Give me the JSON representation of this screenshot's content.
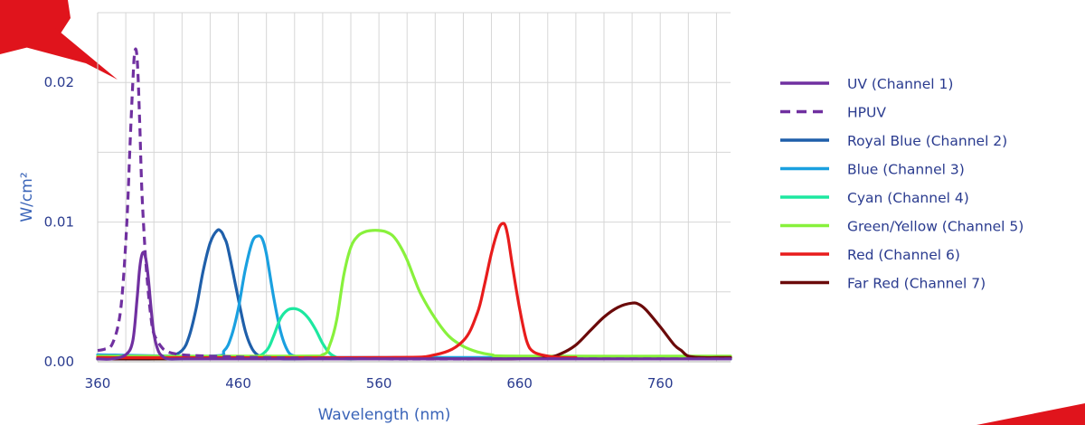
{
  "chart_data": {
    "type": "line",
    "xlabel": "Wavelength (nm)",
    "ylabel": "W/cm²",
    "xlim": [
      360,
      810
    ],
    "ylim": [
      0,
      0.025
    ],
    "xticks": [
      360,
      460,
      560,
      660,
      760
    ],
    "xtick_labels": [
      "360",
      "460",
      "560",
      "660",
      "760"
    ],
    "yticks": [
      0,
      0.01,
      0.02
    ],
    "ytick_labels": [
      "0.00",
      "0.01",
      "0.02"
    ],
    "grid": true,
    "legend_position": "right",
    "series": [
      {
        "name": "UV (Channel 1)",
        "color": "#7030a0",
        "style": "solid",
        "x": [
          360,
          370,
          380,
          385,
          388,
          390,
          392,
          394,
          396,
          398,
          400,
          403,
          406,
          410,
          420,
          440,
          460,
          500,
          560,
          660,
          810
        ],
        "y": [
          0.0002,
          0.0002,
          0.0005,
          0.0015,
          0.0045,
          0.0068,
          0.0078,
          0.0075,
          0.006,
          0.0038,
          0.002,
          0.0008,
          0.0004,
          0.0002,
          0.0002,
          0.0002,
          0.0002,
          0.0002,
          0.0002,
          0.0002,
          0.0002
        ]
      },
      {
        "name": "HPUV",
        "color": "#7030a0",
        "style": "dashed",
        "x": [
          360,
          365,
          370,
          375,
          378,
          381,
          383,
          385,
          386,
          387,
          388,
          389,
          390,
          391,
          392,
          394,
          396,
          398,
          400,
          405,
          410,
          420,
          440,
          480,
          560,
          660,
          810
        ],
        "y": [
          0.0008,
          0.0009,
          0.0012,
          0.0028,
          0.0055,
          0.0105,
          0.0155,
          0.02,
          0.0218,
          0.0224,
          0.0218,
          0.0198,
          0.0168,
          0.0135,
          0.011,
          0.0075,
          0.005,
          0.0031,
          0.002,
          0.0011,
          0.0007,
          0.0005,
          0.0004,
          0.0003,
          0.0002,
          0.0002,
          0.0002
        ]
      },
      {
        "name": "Royal Blue (Channel 2)",
        "color": "#1f5faa",
        "style": "solid",
        "x": [
          360,
          400,
          410,
          420,
          425,
          430,
          435,
          440,
          445,
          448,
          450,
          452,
          455,
          460,
          465,
          470,
          475,
          480,
          490,
          510,
          560,
          660,
          810
        ],
        "y": [
          0.0002,
          0.0002,
          0.0003,
          0.0008,
          0.0018,
          0.0038,
          0.0065,
          0.0085,
          0.0094,
          0.0093,
          0.0089,
          0.0084,
          0.007,
          0.0045,
          0.0022,
          0.0009,
          0.0004,
          0.0003,
          0.0002,
          0.0002,
          0.0002,
          0.0002,
          0.0002
        ]
      },
      {
        "name": "Blue (Channel 3)",
        "color": "#1aa0e0",
        "style": "solid",
        "x": [
          360,
          440,
          450,
          455,
          460,
          465,
          470,
          474,
          477,
          480,
          485,
          490,
          495,
          500,
          510,
          520,
          560,
          660,
          810
        ],
        "y": [
          0.0005,
          0.0004,
          0.0008,
          0.0018,
          0.0038,
          0.0066,
          0.0086,
          0.009,
          0.0088,
          0.0077,
          0.0047,
          0.0022,
          0.0008,
          0.0004,
          0.0003,
          0.0003,
          0.0003,
          0.0003,
          0.0003
        ]
      },
      {
        "name": "Cyan (Channel 4)",
        "color": "#1de8a0",
        "style": "solid",
        "x": [
          360,
          440,
          470,
          480,
          485,
          490,
          495,
          500,
          505,
          510,
          515,
          520,
          525,
          530,
          535,
          545,
          560,
          660,
          810
        ],
        "y": [
          0.0002,
          0.0002,
          0.0003,
          0.0008,
          0.0018,
          0.0031,
          0.0037,
          0.0038,
          0.0036,
          0.0031,
          0.0023,
          0.0013,
          0.0006,
          0.0003,
          0.0002,
          0.0002,
          0.0002,
          0.0002,
          0.0002
        ]
      },
      {
        "name": "Green/Yellow (Channel 5)",
        "color": "#88f13c",
        "style": "solid",
        "x": [
          360,
          500,
          520,
          525,
          530,
          535,
          540,
          545,
          550,
          555,
          560,
          565,
          570,
          575,
          580,
          585,
          590,
          600,
          610,
          620,
          630,
          640,
          660,
          810
        ],
        "y": [
          0.0004,
          0.0004,
          0.0005,
          0.0012,
          0.003,
          0.0062,
          0.0082,
          0.009,
          0.0093,
          0.0094,
          0.0094,
          0.0093,
          0.009,
          0.0083,
          0.0073,
          0.006,
          0.0048,
          0.0031,
          0.0018,
          0.0011,
          0.0007,
          0.0005,
          0.0004,
          0.0004
        ]
      },
      {
        "name": "Red (Channel 6)",
        "color": "#e81c1c",
        "style": "solid",
        "x": [
          360,
          560,
          600,
          620,
          630,
          635,
          640,
          645,
          648,
          650,
          652,
          655,
          660,
          665,
          670,
          680,
          690,
          700
        ],
        "y": [
          0.0003,
          0.0003,
          0.0005,
          0.0015,
          0.0035,
          0.0055,
          0.0078,
          0.0095,
          0.0099,
          0.0097,
          0.0088,
          0.0068,
          0.0038,
          0.0015,
          0.0007,
          0.0004,
          0.0003,
          0.0003
        ]
      },
      {
        "name": "Far Red (Channel 7)",
        "color": "#6b0a0a",
        "style": "solid",
        "x": [
          360,
          600,
          660,
          680,
          690,
          700,
          710,
          720,
          730,
          740,
          745,
          750,
          760,
          770,
          775,
          780,
          790,
          800,
          810
        ],
        "y": [
          0.0002,
          0.0002,
          0.0002,
          0.0003,
          0.0006,
          0.0012,
          0.0022,
          0.0032,
          0.0039,
          0.0042,
          0.0041,
          0.0037,
          0.0025,
          0.0012,
          0.0008,
          0.0004,
          0.0003,
          0.0003,
          0.0003
        ]
      }
    ]
  }
}
